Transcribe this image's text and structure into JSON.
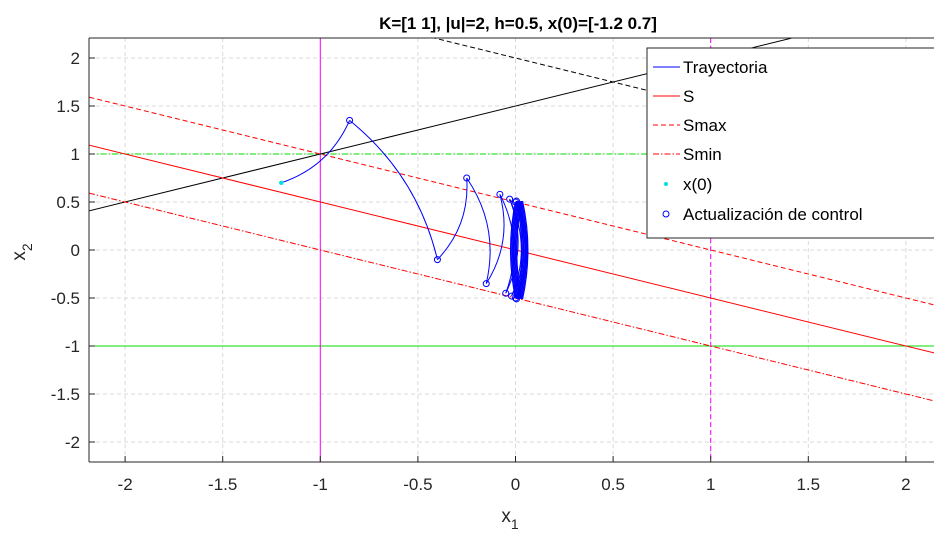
{
  "chart_data": {
    "type": "line",
    "title": "K=[1 1], |u|=2, h=0.5, x(0)=[-1.2  0.7]",
    "xlabel": "x",
    "xlabel_sub": "1",
    "ylabel": "x",
    "ylabel_sub": "2",
    "xlim": [
      -2.2,
      2.1
    ],
    "ylim": [
      -2.2,
      2.2
    ],
    "xticks": [
      -2,
      -1.5,
      -1,
      -0.5,
      0,
      0.5,
      1,
      1.5,
      2
    ],
    "xtick_labels": [
      "-2",
      "-1.5",
      "-1",
      "-0.5",
      "0",
      "0.5",
      "1",
      "1.5",
      "2"
    ],
    "yticks": [
      2,
      1.5,
      1,
      0.5,
      0,
      -0.5,
      -1,
      -1.5,
      -2
    ],
    "ytick_labels": [
      "2",
      "1.5",
      "1",
      "0.5",
      "0",
      "-0.5",
      "-1",
      "-1.5",
      "-2"
    ],
    "grid": true,
    "legend_position": "top-right",
    "colors": {
      "trajectory": "#0000ff",
      "s": "#ff0000",
      "x0": "#00e0e0",
      "green": "#00dd00",
      "magenta": "#ff00ff",
      "black": "#000000",
      "grid": "#d9d9d9"
    },
    "series": [
      {
        "name": "Trayectoria",
        "style": "solid",
        "color": "#0000ff"
      },
      {
        "name": "S",
        "style": "solid",
        "color": "#ff0000",
        "line": {
          "slope": -0.5,
          "intercept": 0
        }
      },
      {
        "name": "Smax",
        "style": "dashed",
        "color": "#ff0000",
        "line": {
          "slope": -0.5,
          "intercept": 0.5
        }
      },
      {
        "name": "Smin",
        "style": "dashdot",
        "color": "#ff0000",
        "line": {
          "slope": -0.5,
          "intercept": -0.5
        }
      },
      {
        "name": "x(0)",
        "style": "marker-dot",
        "color": "#00e0e0",
        "points": [
          [
            -1.2,
            0.7
          ]
        ]
      },
      {
        "name": "Actualización de control",
        "style": "marker-circle",
        "color": "#0000ff",
        "points": [
          [
            -0.85,
            1.35
          ],
          [
            -0.4,
            -0.1
          ],
          [
            -0.25,
            0.75
          ],
          [
            -0.15,
            -0.35
          ],
          [
            -0.08,
            0.58
          ],
          [
            -0.05,
            -0.45
          ],
          [
            -0.03,
            0.53
          ],
          [
            -0.02,
            -0.48
          ],
          [
            0.0,
            0.5
          ],
          [
            0.0,
            -0.5
          ],
          [
            0.005,
            0.51
          ],
          [
            0.005,
            -0.51
          ]
        ]
      }
    ],
    "trajectory_segments": [
      [
        [
          -1.2,
          0.7
        ],
        [
          -0.85,
          1.35
        ]
      ],
      [
        [
          -0.85,
          1.35
        ],
        [
          -0.4,
          -0.1
        ]
      ],
      [
        [
          -0.4,
          -0.1
        ],
        [
          -0.25,
          0.75
        ]
      ],
      [
        [
          -0.25,
          0.75
        ],
        [
          -0.15,
          -0.35
        ]
      ],
      [
        [
          -0.15,
          -0.35
        ],
        [
          -0.08,
          0.58
        ]
      ],
      [
        [
          -0.08,
          0.58
        ],
        [
          -0.05,
          -0.45
        ]
      ],
      [
        [
          -0.05,
          -0.45
        ],
        [
          -0.03,
          0.53
        ]
      ],
      [
        [
          -0.03,
          0.53
        ],
        [
          -0.02,
          -0.48
        ]
      ],
      [
        [
          -0.02,
          -0.48
        ],
        [
          0.0,
          0.5
        ]
      ],
      [
        [
          0.0,
          0.5
        ],
        [
          0.0,
          -0.5
        ]
      ],
      [
        [
          0.0,
          -0.5
        ],
        [
          0.005,
          0.51
        ]
      ],
      [
        [
          0.005,
          0.51
        ],
        [
          0.005,
          -0.51
        ]
      ],
      [
        [
          0.005,
          -0.51
        ],
        [
          0.0,
          0.5
        ]
      ],
      [
        [
          0.0,
          0.5
        ],
        [
          0.005,
          -0.51
        ]
      ]
    ],
    "reference_lines": [
      {
        "kind": "horizontal",
        "value": 1,
        "color": "#00dd00",
        "style": "dashdot"
      },
      {
        "kind": "horizontal",
        "value": -1,
        "color": "#00dd00",
        "style": "solid"
      },
      {
        "kind": "vertical",
        "value": -1,
        "color": "#ff00ff",
        "style": "solid"
      },
      {
        "kind": "vertical",
        "value": 1,
        "color": "#ff00ff",
        "style": "dashed"
      },
      {
        "kind": "sloped",
        "slope": 0.5,
        "intercept": 1.5,
        "color": "#000000",
        "style": "solid"
      },
      {
        "kind": "sloped",
        "slope": -0.5,
        "intercept": 2,
        "color": "#000000",
        "style": "dashed"
      }
    ]
  }
}
